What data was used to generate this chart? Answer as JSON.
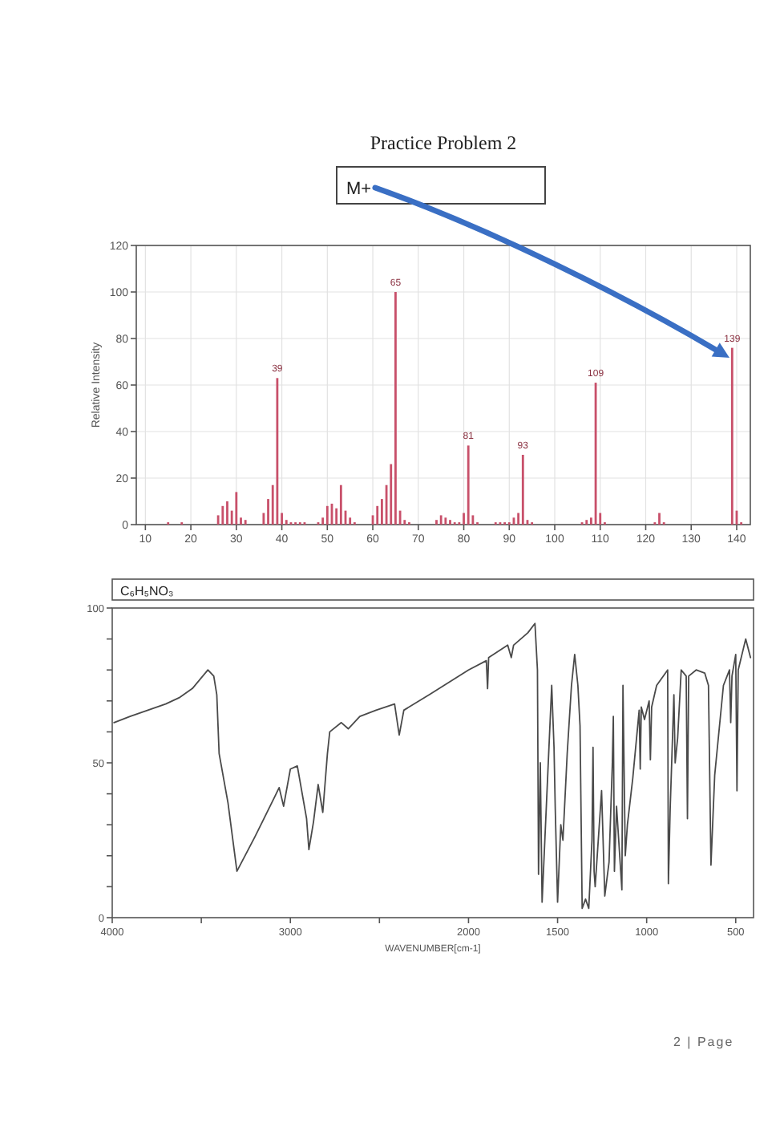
{
  "chart_data": [
    {
      "type": "bar",
      "title": "Practice Problem 2",
      "ylabel": "Relative Intensity",
      "color": "#c8506a",
      "x": [
        15,
        18,
        26,
        27,
        28,
        29,
        30,
        31,
        32,
        36,
        37,
        38,
        39,
        40,
        41,
        42,
        43,
        44,
        45,
        48,
        49,
        50,
        51,
        52,
        53,
        54,
        55,
        56,
        60,
        61,
        62,
        63,
        64,
        65,
        66,
        67,
        68,
        74,
        75,
        76,
        77,
        78,
        79,
        80,
        81,
        82,
        83,
        87,
        88,
        89,
        90,
        91,
        92,
        93,
        94,
        95,
        106,
        107,
        108,
        109,
        110,
        111,
        122,
        123,
        124,
        139,
        140,
        141
      ],
      "values": [
        1,
        1,
        4,
        8,
        10,
        6,
        14,
        3,
        2,
        5,
        11,
        17,
        63,
        5,
        2,
        1,
        1,
        1,
        1,
        1,
        3,
        8,
        9,
        7,
        17,
        6,
        3,
        1,
        4,
        8,
        11,
        17,
        26,
        100,
        6,
        2,
        1,
        2,
        4,
        3,
        2,
        1,
        1,
        5,
        34,
        4,
        1,
        1,
        1,
        1,
        1,
        3,
        5,
        30,
        2,
        1,
        1,
        2,
        3,
        61,
        5,
        1,
        1,
        5,
        1,
        76,
        6,
        1
      ],
      "xlim": [
        8,
        143
      ],
      "xticks": [
        10,
        20,
        30,
        40,
        50,
        60,
        70,
        80,
        90,
        100,
        110,
        120,
        130,
        140
      ],
      "ylim": [
        0,
        120
      ],
      "yticks": [
        0,
        20,
        40,
        60,
        80,
        100,
        120
      ],
      "grid": true,
      "annotations": [
        "M+",
        {
          "text": "39",
          "x": 39,
          "y": 63
        },
        {
          "text": "65",
          "x": 65,
          "y": 100
        },
        {
          "text": "81",
          "x": 81,
          "y": 34
        },
        {
          "text": "93",
          "x": 93,
          "y": 30
        },
        {
          "text": "109",
          "x": 109,
          "y": 61
        },
        {
          "text": "139",
          "x": 139,
          "y": 76
        }
      ]
    },
    {
      "type": "line",
      "title": "C₆H₅NO₃",
      "xlabel": "WAVENUMBER[cm-1]",
      "color": "#4a4a4a",
      "x": [
        3990,
        3900,
        3800,
        3700,
        3625,
        3550,
        3463,
        3430,
        3413,
        3400,
        3350,
        3300,
        3200,
        3088,
        3063,
        3038,
        3000,
        2961,
        2909,
        2896,
        2870,
        2844,
        2818,
        2792,
        2779,
        2714,
        2675,
        2610,
        2519,
        2415,
        2389,
        2363,
        2220,
        2000,
        1900,
        1893,
        1887,
        1780,
        1760,
        1747,
        1667,
        1627,
        1613,
        1607,
        1597,
        1587,
        1560,
        1533,
        1520,
        1513,
        1500,
        1482,
        1470,
        1446,
        1422,
        1404,
        1386,
        1374,
        1362,
        1343,
        1325,
        1307,
        1301,
        1295,
        1289,
        1253,
        1235,
        1211,
        1193,
        1187,
        1181,
        1169,
        1139,
        1133,
        1120,
        1108,
        1078,
        1042,
        1036,
        1030,
        1012,
        986,
        979,
        972,
        944,
        882,
        878,
        868,
        847,
        840,
        826,
        806,
        778,
        771,
        764,
        722,
        674,
        653,
        639,
        618,
        569,
        535,
        528,
        521,
        500,
        493,
        486,
        444,
        417
      ],
      "values": [
        63,
        65,
        67,
        69,
        71,
        74,
        80,
        78,
        72,
        53,
        37,
        15,
        26,
        39,
        42,
        36,
        48,
        49,
        32,
        22,
        31,
        43,
        34,
        53,
        60,
        63,
        61,
        65,
        67,
        69,
        59,
        67,
        72,
        80,
        83,
        74,
        84,
        88,
        84,
        88,
        92,
        95,
        80,
        14,
        50,
        5,
        40,
        75,
        55,
        35,
        5,
        30,
        25,
        53,
        75,
        85,
        75,
        62,
        3,
        6,
        3,
        25,
        55,
        15,
        10,
        41,
        7,
        18,
        49,
        65,
        15,
        36,
        9,
        75,
        20,
        30,
        45,
        67,
        48,
        68,
        64,
        70,
        51,
        68,
        75,
        80,
        11,
        35,
        72,
        50,
        58,
        80,
        78,
        32,
        78,
        80,
        79,
        75,
        17,
        46,
        75,
        80,
        63,
        78,
        85,
        41,
        80,
        90,
        84
      ],
      "xlim": [
        4000,
        400
      ],
      "xticks": [
        4000,
        {
          "value": 3500,
          "label": null
        },
        3000,
        {
          "value": 2500,
          "label": null
        },
        2000,
        1500,
        1000,
        500
      ],
      "ylim": [
        0,
        100
      ],
      "yticks": [
        0,
        {
          "value": 10,
          "label": null
        },
        {
          "value": 20,
          "label": null
        },
        {
          "value": 30,
          "label": null
        },
        {
          "value": 40,
          "label": null
        },
        50,
        {
          "value": 60,
          "label": null
        },
        {
          "value": 70,
          "label": null
        },
        {
          "value": 80,
          "label": null
        },
        {
          "value": 90,
          "label": null
        },
        100
      ],
      "annotations": [
        "2 | Page"
      ]
    }
  ]
}
